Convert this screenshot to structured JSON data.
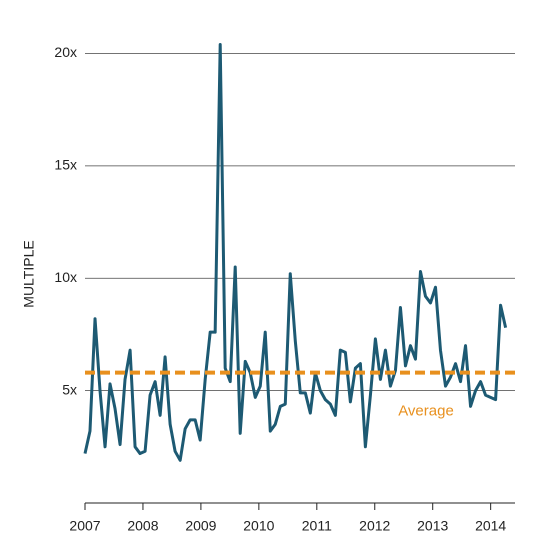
{
  "chart_data": {
    "type": "line",
    "ylabel": "MULTIPLE",
    "xlim": [
      2007,
      2014.42
    ],
    "ylim": [
      0,
      21
    ],
    "xticks": [
      2007,
      2008,
      2009,
      2010,
      2011,
      2012,
      2013,
      2014
    ],
    "yticks": [
      {
        "value": 5,
        "label": "5x"
      },
      {
        "value": 10,
        "label": "10x"
      },
      {
        "value": 15,
        "label": "15x"
      },
      {
        "value": 20,
        "label": "20x"
      }
    ],
    "grid": true,
    "x": [
      2007,
      2007.086,
      2007.173,
      2007.259,
      2007.346,
      2007.432,
      2007.518,
      2007.605,
      2007.691,
      2007.778,
      2007.864,
      2007.95,
      2008.037,
      2008.123,
      2008.21,
      2008.296,
      2008.382,
      2008.469,
      2008.555,
      2008.642,
      2008.728,
      2008.814,
      2008.901,
      2008.987,
      2009.074,
      2009.16,
      2009.246,
      2009.333,
      2009.419,
      2009.506,
      2009.592,
      2009.678,
      2009.765,
      2009.851,
      2009.938,
      2010.024,
      2010.11,
      2010.197,
      2010.283,
      2010.37,
      2010.456,
      2010.542,
      2010.629,
      2010.715,
      2010.802,
      2010.888,
      2010.974,
      2011.061,
      2011.147,
      2011.234,
      2011.32,
      2011.406,
      2011.493,
      2011.579,
      2011.666,
      2011.752,
      2011.838,
      2011.925,
      2012.011,
      2012.098,
      2012.184,
      2012.27,
      2012.357,
      2012.443,
      2012.53,
      2012.616,
      2012.702,
      2012.789,
      2012.875,
      2012.962,
      2013.048,
      2013.134,
      2013.221,
      2013.307,
      2013.394,
      2013.48,
      2013.566,
      2013.653,
      2013.739,
      2013.826,
      2013.912,
      2013.998,
      2014.085,
      2014.171,
      2014.258
    ],
    "series": [
      {
        "color": "#1d5a73",
        "values": [
          2.2,
          3.2,
          8.2,
          5.0,
          2.5,
          5.3,
          4.2,
          2.6,
          5.5,
          6.8,
          2.5,
          2.2,
          2.3,
          4.8,
          5.4,
          3.9,
          6.5,
          3.5,
          2.3,
          1.9,
          3.3,
          3.7,
          3.7,
          2.8,
          5.5,
          7.6,
          7.6,
          20.4,
          6.0,
          5.4,
          10.5,
          3.1,
          6.3,
          5.8,
          4.7,
          5.2,
          7.6,
          3.2,
          3.5,
          4.3,
          4.4,
          10.2,
          7.2,
          4.9,
          4.9,
          4.0,
          5.8,
          5.0,
          4.6,
          4.4,
          3.9,
          6.8,
          6.7,
          4.5,
          6.0,
          6.2,
          2.5,
          4.8,
          7.3,
          5.5,
          6.8,
          5.2,
          5.9,
          8.7,
          6.1,
          7.0,
          6.4,
          10.3,
          9.2,
          8.9,
          9.6,
          6.8,
          5.2,
          5.6,
          6.2,
          5.4,
          7.0,
          4.3,
          5.0,
          5.4,
          4.8,
          4.7,
          4.6,
          8.8,
          7.8
        ]
      }
    ],
    "average": {
      "value": 5.8,
      "label": "Average",
      "color": "#e8901e"
    }
  }
}
